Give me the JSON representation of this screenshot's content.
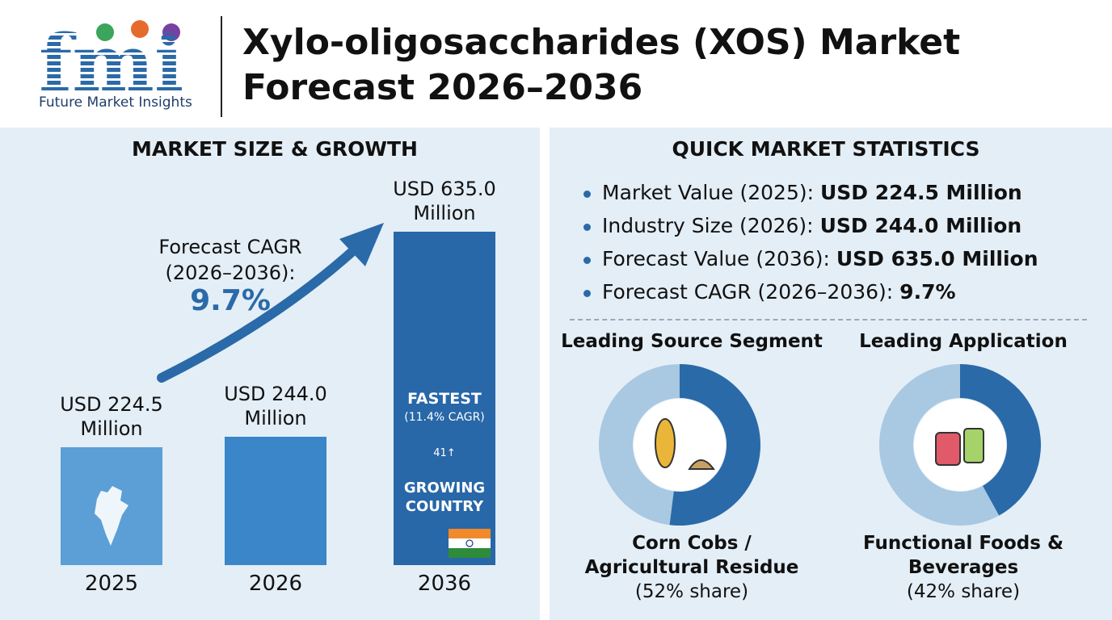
{
  "header": {
    "logo": "fmi",
    "company": "Future Market Insights",
    "title_lines": [
      "Xylo-oligosaccharides (XOS) Market",
      "Forecast 2026–2036"
    ]
  },
  "chart_data": [
    {
      "type": "bar",
      "title": "MARKET SIZE & GROWTH",
      "categories": [
        "2025",
        "2026",
        "2036"
      ],
      "values": [
        224.5,
        244.0,
        635.0
      ],
      "value_labels": [
        "USD 224.5 Million",
        "USD 244.0 Million",
        "USD 635.0 Million"
      ],
      "colors": [
        "#5b9fd6",
        "#3a86c8",
        "#2867a8"
      ],
      "annotations": [
        "Forecast CAGR (2026–2036):",
        "9.7%",
        "FASTEST",
        "(11.4% CAGR)",
        "41↑",
        "GROWING COUNTRY"
      ]
    },
    {
      "type": "pie",
      "title": "Leading Source Segment",
      "categories": [
        "Corn Cobs / Agricultural Residue",
        null
      ],
      "values": [
        52,
        48
      ],
      "value_labels": [
        "(52% share)",
        null
      ],
      "colors": [
        "#2a6aa8",
        "#a9c8e2"
      ]
    },
    {
      "type": "pie",
      "title": "Leading Application",
      "categories": [
        "Functional Foods & Beverages",
        null
      ],
      "values": [
        42,
        58
      ],
      "value_labels": [
        "(42% share)",
        null
      ],
      "colors": [
        "#2a6aa8",
        "#a9c8e2"
      ]
    }
  ],
  "quick_stats": {
    "title": "QUICK MARKET STATISTICS",
    "items": [
      {
        "label": "Market Value (2025):",
        "value": "USD 224.5 Million"
      },
      {
        "label": "Industry Size (2026):",
        "value": "USD 244.0 Million"
      },
      {
        "label": "Forecast Value (2036):",
        "value": "USD 635.0 Million"
      },
      {
        "label": "Forecast CAGR (2026–2036):",
        "value": "9.7%"
      }
    ]
  }
}
